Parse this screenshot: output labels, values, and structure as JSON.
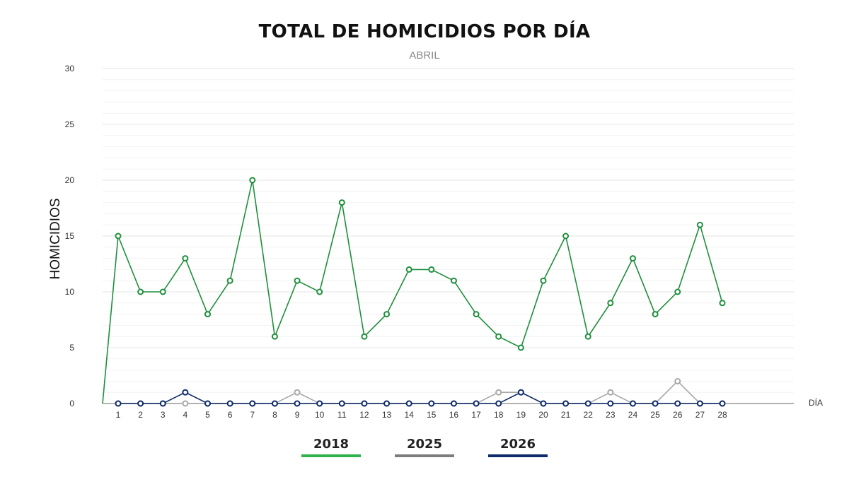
{
  "chart_data": {
    "type": "line",
    "title": "TOTAL DE HOMICIDIOS POR DÍA",
    "subtitle": "ABRIL",
    "ylabel": "HOMICIDIOS",
    "xlabel": "DÍA",
    "ylim": [
      0,
      30
    ],
    "yticks": [
      0,
      5,
      10,
      15,
      20,
      25,
      30
    ],
    "x": [
      1,
      2,
      3,
      4,
      5,
      6,
      7,
      8,
      9,
      10,
      11,
      12,
      13,
      14,
      15,
      16,
      17,
      18,
      19,
      20,
      21,
      22,
      23,
      24,
      25,
      26,
      27,
      28
    ],
    "legend_position": "bottom",
    "series": [
      {
        "name": "2018",
        "color": "#1e8f3c",
        "legend_color": "#2fb14d",
        "values": [
          15,
          10,
          10,
          13,
          8,
          11,
          20,
          6,
          11,
          10,
          18,
          6,
          8,
          12,
          12,
          11,
          8,
          6,
          5,
          11,
          15,
          6,
          9,
          13,
          8,
          10,
          16,
          9
        ]
      },
      {
        "name": "2025",
        "color": "#a8a8a8",
        "legend_color": "#7d7d7d",
        "values": [
          0,
          0,
          0,
          0,
          0,
          0,
          0,
          0,
          1,
          0,
          0,
          0,
          0,
          0,
          0,
          0,
          0,
          1,
          1,
          0,
          0,
          0,
          1,
          0,
          0,
          2,
          0,
          0
        ]
      },
      {
        "name": "2026",
        "color": "#0d2a6b",
        "legend_color": "#0d2a6b",
        "values": [
          0,
          0,
          0,
          1,
          0,
          0,
          0,
          0,
          0,
          0,
          0,
          0,
          0,
          0,
          0,
          0,
          0,
          0,
          1,
          0,
          0,
          0,
          0,
          0,
          0,
          0,
          0,
          0
        ]
      }
    ]
  }
}
